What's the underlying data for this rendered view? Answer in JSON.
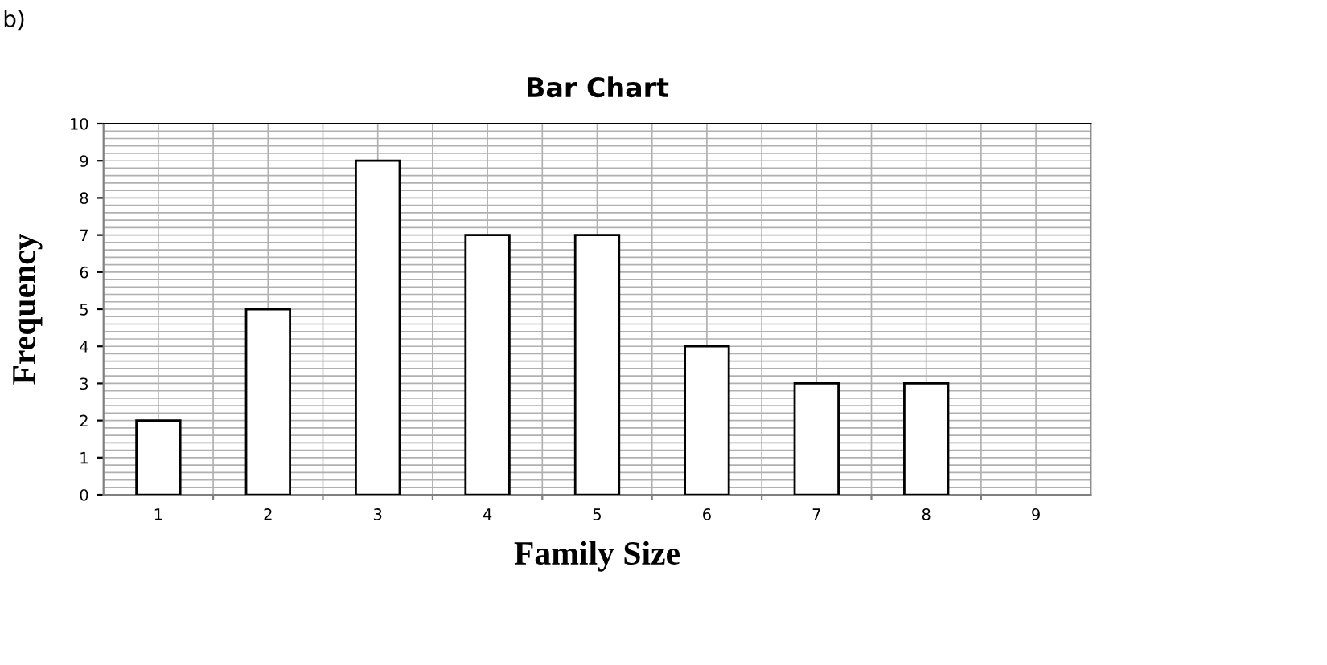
{
  "chart_data": {
    "type": "bar",
    "title": "Bar Chart",
    "xlabel": "Family Size",
    "ylabel": "Frequency",
    "categories": [
      "1",
      "2",
      "3",
      "4",
      "5",
      "6",
      "7",
      "8",
      "9"
    ],
    "values": [
      2,
      5,
      9,
      7,
      7,
      4,
      3,
      3,
      null
    ],
    "color": "#ffffff",
    "ylim": [
      0,
      10
    ],
    "yticks": [
      0,
      1,
      2,
      3,
      4,
      5,
      6,
      7,
      8,
      9,
      10
    ],
    "grid": true,
    "annotations": [
      "b)"
    ]
  }
}
